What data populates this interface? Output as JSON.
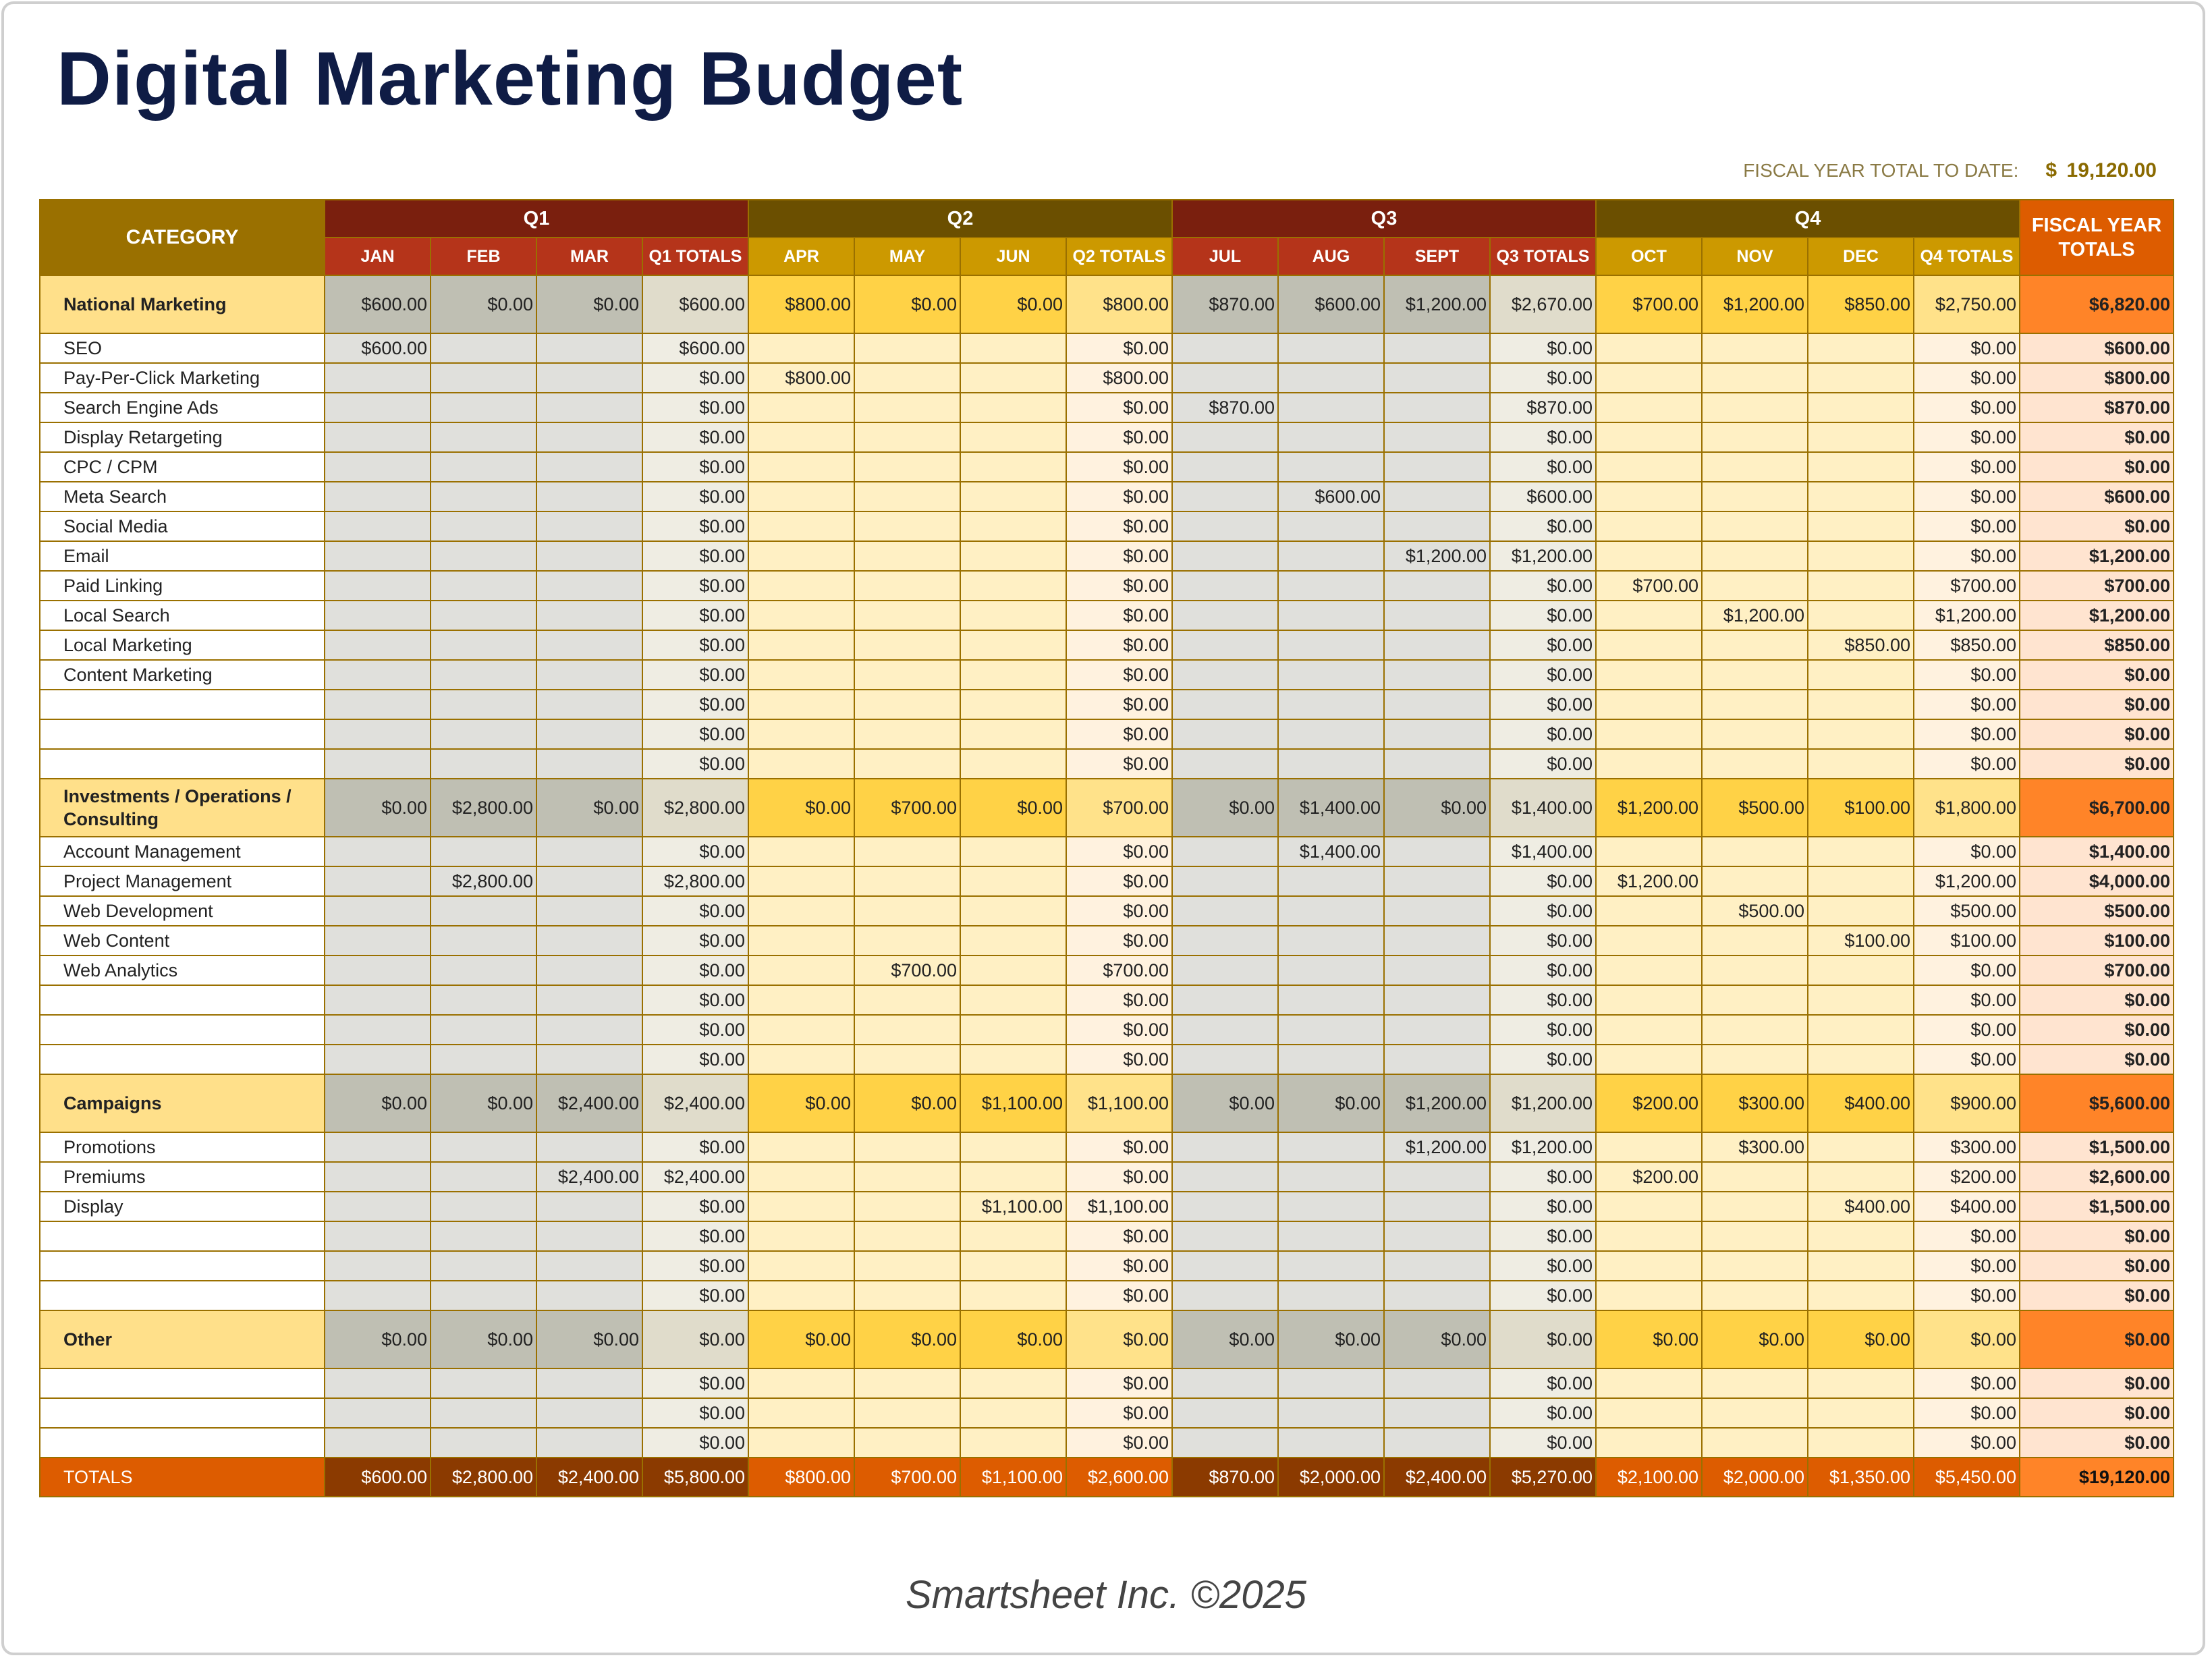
{
  "title": "Digital Marketing Budget",
  "fiscal_summary": {
    "label": "FISCAL YEAR TOTAL TO DATE:",
    "currency": "$",
    "value": "19,120.00"
  },
  "header": {
    "category": "CATEGORY",
    "fiscal_year_totals": "FISCAL YEAR TOTALS",
    "quarters": [
      {
        "label": "Q1",
        "columns": [
          "JAN",
          "FEB",
          "MAR",
          "Q1 TOTALS"
        ]
      },
      {
        "label": "Q2",
        "columns": [
          "APR",
          "MAY",
          "JUN",
          "Q2 TOTALS"
        ]
      },
      {
        "label": "Q3",
        "columns": [
          "JUL",
          "AUG",
          "SEPT",
          "Q3 TOTALS"
        ]
      },
      {
        "label": "Q4",
        "columns": [
          "OCT",
          "NOV",
          "DEC",
          "Q4 TOTALS"
        ]
      }
    ]
  },
  "sections": [
    {
      "label": "National Marketing",
      "values": [
        "$600.00",
        "$0.00",
        "$0.00",
        "$600.00",
        "$800.00",
        "$0.00",
        "$0.00",
        "$800.00",
        "$870.00",
        "$600.00",
        "$1,200.00",
        "$2,670.00",
        "$700.00",
        "$1,200.00",
        "$850.00",
        "$2,750.00"
      ],
      "fy": "$6,820.00",
      "rows": [
        {
          "label": "SEO",
          "values": [
            "$600.00",
            "",
            "",
            "$600.00",
            "",
            "",
            "",
            "$0.00",
            "",
            "",
            "",
            "$0.00",
            "",
            "",
            "",
            "$0.00"
          ],
          "fy": "$600.00"
        },
        {
          "label": "Pay-Per-Click Marketing",
          "values": [
            "",
            "",
            "",
            "$0.00",
            "$800.00",
            "",
            "",
            "$800.00",
            "",
            "",
            "",
            "$0.00",
            "",
            "",
            "",
            "$0.00"
          ],
          "fy": "$800.00"
        },
        {
          "label": "Search Engine Ads",
          "values": [
            "",
            "",
            "",
            "$0.00",
            "",
            "",
            "",
            "$0.00",
            "$870.00",
            "",
            "",
            "$870.00",
            "",
            "",
            "",
            "$0.00"
          ],
          "fy": "$870.00"
        },
        {
          "label": "Display Retargeting",
          "values": [
            "",
            "",
            "",
            "$0.00",
            "",
            "",
            "",
            "$0.00",
            "",
            "",
            "",
            "$0.00",
            "",
            "",
            "",
            "$0.00"
          ],
          "fy": "$0.00"
        },
        {
          "label": "CPC / CPM",
          "values": [
            "",
            "",
            "",
            "$0.00",
            "",
            "",
            "",
            "$0.00",
            "",
            "",
            "",
            "$0.00",
            "",
            "",
            "",
            "$0.00"
          ],
          "fy": "$0.00"
        },
        {
          "label": "Meta Search",
          "values": [
            "",
            "",
            "",
            "$0.00",
            "",
            "",
            "",
            "$0.00",
            "",
            "$600.00",
            "",
            "$600.00",
            "",
            "",
            "",
            "$0.00"
          ],
          "fy": "$600.00"
        },
        {
          "label": "Social Media",
          "values": [
            "",
            "",
            "",
            "$0.00",
            "",
            "",
            "",
            "$0.00",
            "",
            "",
            "",
            "$0.00",
            "",
            "",
            "",
            "$0.00"
          ],
          "fy": "$0.00"
        },
        {
          "label": "Email",
          "values": [
            "",
            "",
            "",
            "$0.00",
            "",
            "",
            "",
            "$0.00",
            "",
            "",
            "$1,200.00",
            "$1,200.00",
            "",
            "",
            "",
            "$0.00"
          ],
          "fy": "$1,200.00"
        },
        {
          "label": "Paid Linking",
          "values": [
            "",
            "",
            "",
            "$0.00",
            "",
            "",
            "",
            "$0.00",
            "",
            "",
            "",
            "$0.00",
            "$700.00",
            "",
            "",
            "$700.00"
          ],
          "fy": "$700.00"
        },
        {
          "label": "Local Search",
          "values": [
            "",
            "",
            "",
            "$0.00",
            "",
            "",
            "",
            "$0.00",
            "",
            "",
            "",
            "$0.00",
            "",
            "$1,200.00",
            "",
            "$1,200.00"
          ],
          "fy": "$1,200.00"
        },
        {
          "label": "Local Marketing",
          "values": [
            "",
            "",
            "",
            "$0.00",
            "",
            "",
            "",
            "$0.00",
            "",
            "",
            "",
            "$0.00",
            "",
            "",
            "$850.00",
            "$850.00"
          ],
          "fy": "$850.00"
        },
        {
          "label": "Content Marketing",
          "values": [
            "",
            "",
            "",
            "$0.00",
            "",
            "",
            "",
            "$0.00",
            "",
            "",
            "",
            "$0.00",
            "",
            "",
            "",
            "$0.00"
          ],
          "fy": "$0.00"
        },
        {
          "label": "",
          "values": [
            "",
            "",
            "",
            "$0.00",
            "",
            "",
            "",
            "$0.00",
            "",
            "",
            "",
            "$0.00",
            "",
            "",
            "",
            "$0.00"
          ],
          "fy": "$0.00"
        },
        {
          "label": "",
          "values": [
            "",
            "",
            "",
            "$0.00",
            "",
            "",
            "",
            "$0.00",
            "",
            "",
            "",
            "$0.00",
            "",
            "",
            "",
            "$0.00"
          ],
          "fy": "$0.00"
        },
        {
          "label": "",
          "values": [
            "",
            "",
            "",
            "$0.00",
            "",
            "",
            "",
            "$0.00",
            "",
            "",
            "",
            "$0.00",
            "",
            "",
            "",
            "$0.00"
          ],
          "fy": "$0.00"
        }
      ]
    },
    {
      "label": "Investments / Operations / Consulting",
      "values": [
        "$0.00",
        "$2,800.00",
        "$0.00",
        "$2,800.00",
        "$0.00",
        "$700.00",
        "$0.00",
        "$700.00",
        "$0.00",
        "$1,400.00",
        "$0.00",
        "$1,400.00",
        "$1,200.00",
        "$500.00",
        "$100.00",
        "$1,800.00"
      ],
      "fy": "$6,700.00",
      "rows": [
        {
          "label": "Account Management",
          "values": [
            "",
            "",
            "",
            "$0.00",
            "",
            "",
            "",
            "$0.00",
            "",
            "$1,400.00",
            "",
            "$1,400.00",
            "",
            "",
            "",
            "$0.00"
          ],
          "fy": "$1,400.00"
        },
        {
          "label": "Project Management",
          "values": [
            "",
            "$2,800.00",
            "",
            "$2,800.00",
            "",
            "",
            "",
            "$0.00",
            "",
            "",
            "",
            "$0.00",
            "$1,200.00",
            "",
            "",
            "$1,200.00"
          ],
          "fy": "$4,000.00"
        },
        {
          "label": "Web Development",
          "values": [
            "",
            "",
            "",
            "$0.00",
            "",
            "",
            "",
            "$0.00",
            "",
            "",
            "",
            "$0.00",
            "",
            "$500.00",
            "",
            "$500.00"
          ],
          "fy": "$500.00"
        },
        {
          "label": "Web Content",
          "values": [
            "",
            "",
            "",
            "$0.00",
            "",
            "",
            "",
            "$0.00",
            "",
            "",
            "",
            "$0.00",
            "",
            "",
            "$100.00",
            "$100.00"
          ],
          "fy": "$100.00"
        },
        {
          "label": "Web Analytics",
          "values": [
            "",
            "",
            "",
            "$0.00",
            "",
            "$700.00",
            "",
            "$700.00",
            "",
            "",
            "",
            "$0.00",
            "",
            "",
            "",
            "$0.00"
          ],
          "fy": "$700.00"
        },
        {
          "label": "",
          "values": [
            "",
            "",
            "",
            "$0.00",
            "",
            "",
            "",
            "$0.00",
            "",
            "",
            "",
            "$0.00",
            "",
            "",
            "",
            "$0.00"
          ],
          "fy": "$0.00"
        },
        {
          "label": "",
          "values": [
            "",
            "",
            "",
            "$0.00",
            "",
            "",
            "",
            "$0.00",
            "",
            "",
            "",
            "$0.00",
            "",
            "",
            "",
            "$0.00"
          ],
          "fy": "$0.00"
        },
        {
          "label": "",
          "values": [
            "",
            "",
            "",
            "$0.00",
            "",
            "",
            "",
            "$0.00",
            "",
            "",
            "",
            "$0.00",
            "",
            "",
            "",
            "$0.00"
          ],
          "fy": "$0.00"
        }
      ]
    },
    {
      "label": "Campaigns",
      "values": [
        "$0.00",
        "$0.00",
        "$2,400.00",
        "$2,400.00",
        "$0.00",
        "$0.00",
        "$1,100.00",
        "$1,100.00",
        "$0.00",
        "$0.00",
        "$1,200.00",
        "$1,200.00",
        "$200.00",
        "$300.00",
        "$400.00",
        "$900.00"
      ],
      "fy": "$5,600.00",
      "rows": [
        {
          "label": "Promotions",
          "values": [
            "",
            "",
            "",
            "$0.00",
            "",
            "",
            "",
            "$0.00",
            "",
            "",
            "$1,200.00",
            "$1,200.00",
            "",
            "$300.00",
            "",
            "$300.00"
          ],
          "fy": "$1,500.00"
        },
        {
          "label": "Premiums",
          "values": [
            "",
            "",
            "$2,400.00",
            "$2,400.00",
            "",
            "",
            "",
            "$0.00",
            "",
            "",
            "",
            "$0.00",
            "$200.00",
            "",
            "",
            "$200.00"
          ],
          "fy": "$2,600.00"
        },
        {
          "label": "Display",
          "values": [
            "",
            "",
            "",
            "$0.00",
            "",
            "",
            "$1,100.00",
            "$1,100.00",
            "",
            "",
            "",
            "$0.00",
            "",
            "",
            "$400.00",
            "$400.00"
          ],
          "fy": "$1,500.00"
        },
        {
          "label": "",
          "values": [
            "",
            "",
            "",
            "$0.00",
            "",
            "",
            "",
            "$0.00",
            "",
            "",
            "",
            "$0.00",
            "",
            "",
            "",
            "$0.00"
          ],
          "fy": "$0.00"
        },
        {
          "label": "",
          "values": [
            "",
            "",
            "",
            "$0.00",
            "",
            "",
            "",
            "$0.00",
            "",
            "",
            "",
            "$0.00",
            "",
            "",
            "",
            "$0.00"
          ],
          "fy": "$0.00"
        },
        {
          "label": "",
          "values": [
            "",
            "",
            "",
            "$0.00",
            "",
            "",
            "",
            "$0.00",
            "",
            "",
            "",
            "$0.00",
            "",
            "",
            "",
            "$0.00"
          ],
          "fy": "$0.00"
        }
      ]
    },
    {
      "label": "Other",
      "values": [
        "$0.00",
        "$0.00",
        "$0.00",
        "$0.00",
        "$0.00",
        "$0.00",
        "$0.00",
        "$0.00",
        "$0.00",
        "$0.00",
        "$0.00",
        "$0.00",
        "$0.00",
        "$0.00",
        "$0.00",
        "$0.00"
      ],
      "fy": "$0.00",
      "rows": [
        {
          "label": "",
          "values": [
            "",
            "",
            "",
            "$0.00",
            "",
            "",
            "",
            "$0.00",
            "",
            "",
            "",
            "$0.00",
            "",
            "",
            "",
            "$0.00"
          ],
          "fy": "$0.00"
        },
        {
          "label": "",
          "values": [
            "",
            "",
            "",
            "$0.00",
            "",
            "",
            "",
            "$0.00",
            "",
            "",
            "",
            "$0.00",
            "",
            "",
            "",
            "$0.00"
          ],
          "fy": "$0.00"
        },
        {
          "label": "",
          "values": [
            "",
            "",
            "",
            "$0.00",
            "",
            "",
            "",
            "$0.00",
            "",
            "",
            "",
            "$0.00",
            "",
            "",
            "",
            "$0.00"
          ],
          "fy": "$0.00"
        }
      ]
    }
  ],
  "totals": {
    "label": "TOTALS",
    "values": [
      "$600.00",
      "$2,800.00",
      "$2,400.00",
      "$5,800.00",
      "$800.00",
      "$700.00",
      "$1,100.00",
      "$2,600.00",
      "$870.00",
      "$2,000.00",
      "$2,400.00",
      "$5,270.00",
      "$2,100.00",
      "$2,000.00",
      "$1,350.00",
      "$5,450.00"
    ],
    "fy": "$19,120.00"
  },
  "footer": "Smartsheet Inc. ©2025",
  "colors": {
    "title": "#0f1c45",
    "q1_q3_header": "#7a1f0e",
    "q2_q4_header": "#6b4f00",
    "fiscal_year_header": "#dd5c00",
    "category_header": "#9a7000"
  }
}
